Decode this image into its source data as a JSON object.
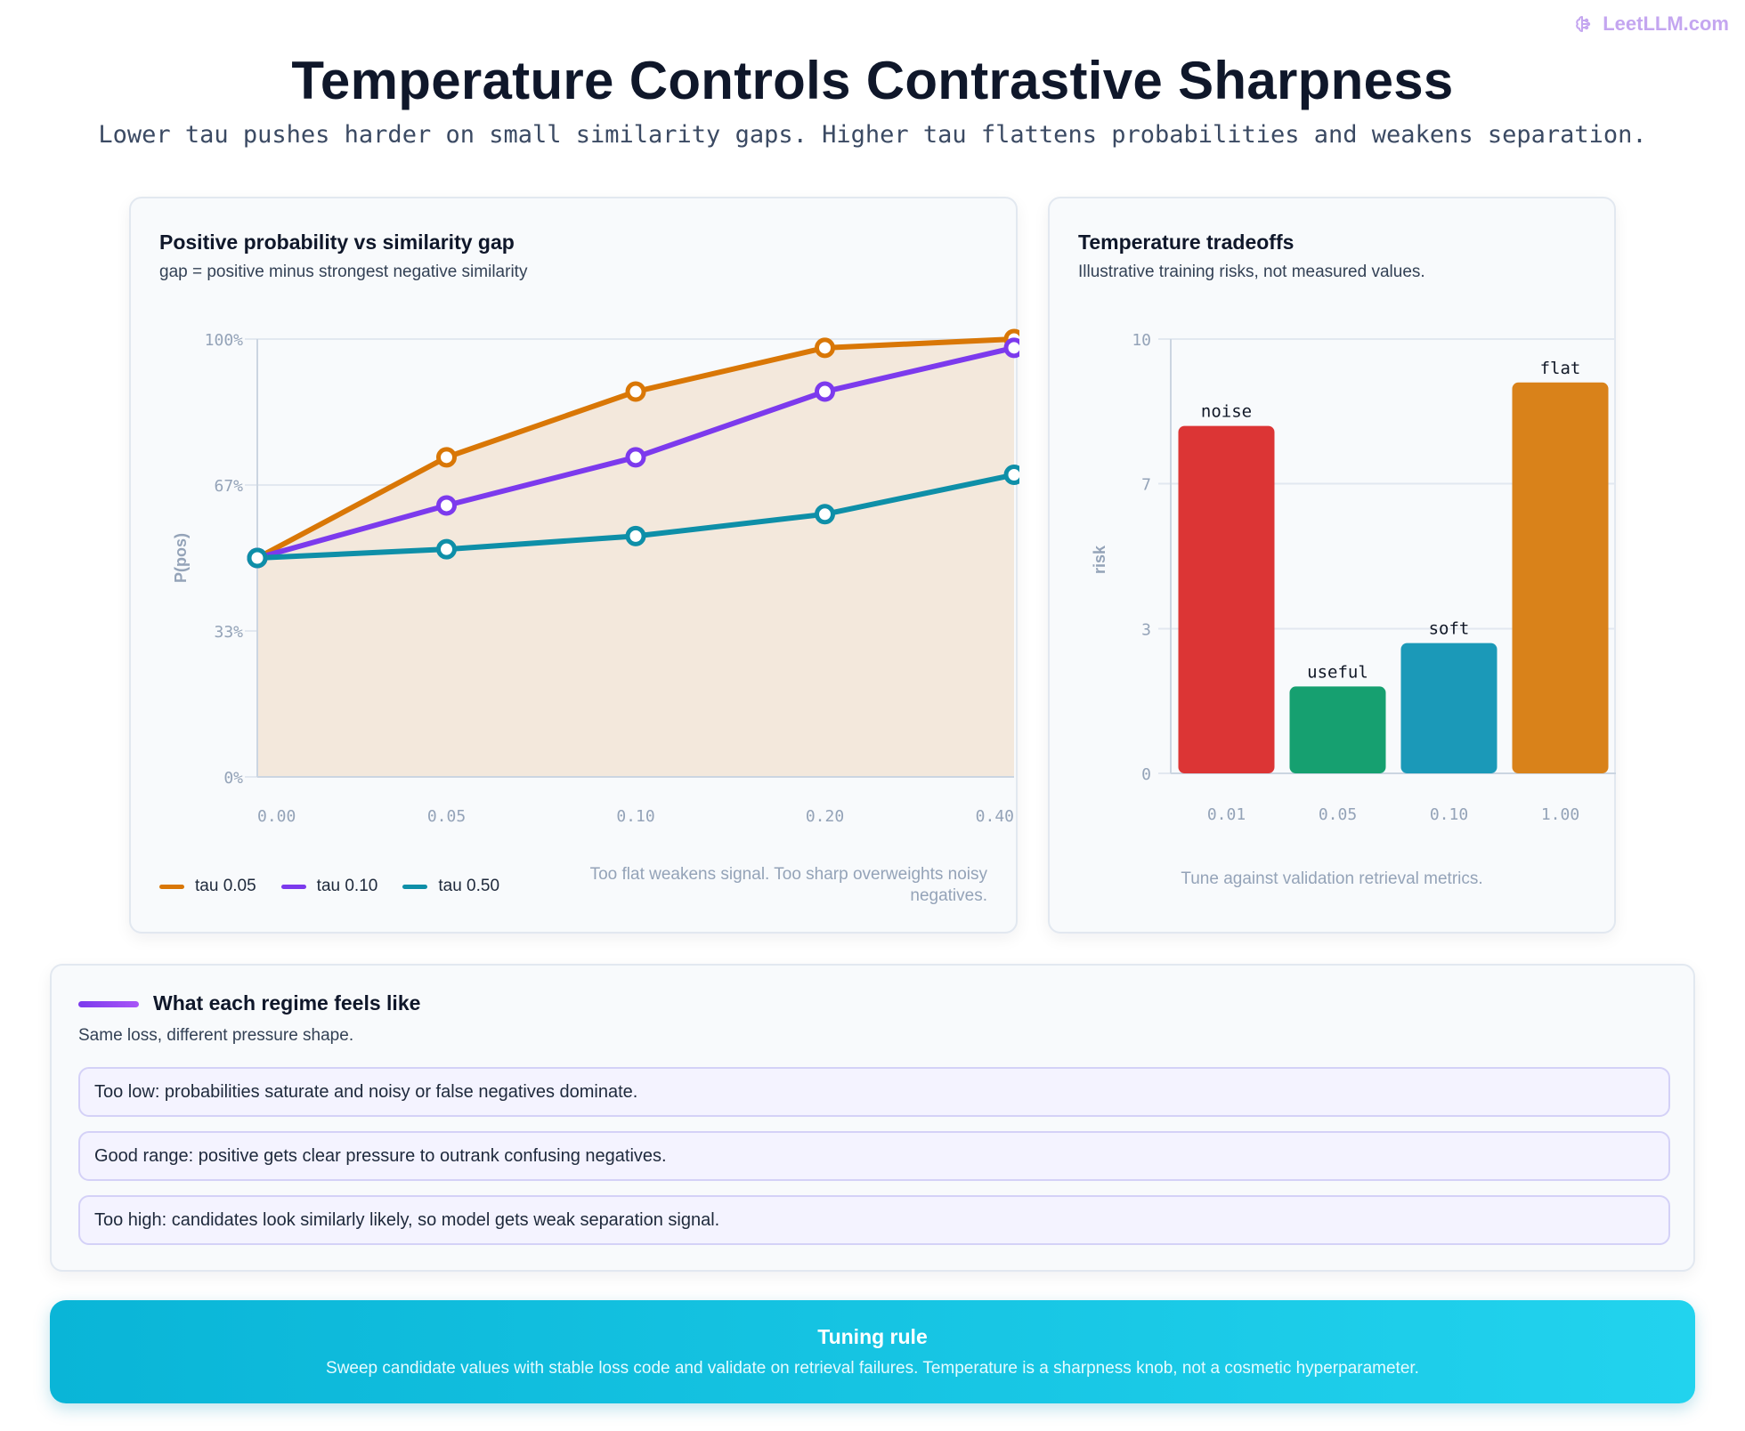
{
  "brand": {
    "name": "LeetLLM.com",
    "icon": "brain-icon",
    "color": "#c4a6f0"
  },
  "header": {
    "title": "Temperature Controls Contrastive Sharpness",
    "subtitle": "Lower tau pushes harder on small similarity gaps. Higher tau flattens probabilities and weakens separation."
  },
  "line_panel": {
    "title": "Positive probability vs similarity gap",
    "subtitle": "gap = positive minus strongest negative similarity",
    "note": "Too flat weakens signal. Too sharp overweights noisy negatives."
  },
  "bar_panel": {
    "title": "Temperature tradeoffs",
    "subtitle": "Illustrative training risks, not measured values.",
    "note": "Tune against validation retrieval metrics."
  },
  "chart_data": [
    {
      "type": "line",
      "x": [
        "0.00",
        "0.05",
        "0.10",
        "0.20",
        "0.40"
      ],
      "xlabel": "",
      "ylabel": "P(pos)",
      "ylim": [
        0,
        100
      ],
      "yticks": [
        "0%",
        "33%",
        "67%",
        "100%"
      ],
      "ytick_values": [
        0,
        33.33,
        66.67,
        100
      ],
      "grid": true,
      "legend_position": "bottom-left",
      "series": [
        {
          "name": "tau 0.05",
          "color": "#d97706",
          "values": [
            50,
            73,
            88,
            98,
            100
          ],
          "filled": true,
          "fill": "#f3e8dc"
        },
        {
          "name": "tau 0.10",
          "color": "#7c3aed",
          "values": [
            50,
            62,
            73,
            88,
            98
          ]
        },
        {
          "name": "tau 0.50",
          "color": "#0e8fa8",
          "values": [
            50,
            52,
            55,
            60,
            69
          ]
        }
      ]
    },
    {
      "type": "bar",
      "categories": [
        "0.01",
        "0.05",
        "0.10",
        "1.00"
      ],
      "values": [
        8,
        2,
        3,
        9
      ],
      "labels": [
        "noise",
        "useful",
        "soft",
        "flat"
      ],
      "colors": [
        "#dc3535",
        "#16a070",
        "#1b99b8",
        "#d9821a"
      ],
      "ylabel": "risk",
      "ylim": [
        0,
        10
      ],
      "yticks": [
        "0",
        "3",
        "7",
        "10"
      ],
      "ytick_values": [
        0,
        3.33,
        6.67,
        10
      ],
      "grid": true
    }
  ],
  "regimes": {
    "title": "What each regime feels like",
    "subtitle": "Same loss, different pressure shape.",
    "items": [
      "Too low: probabilities saturate and noisy or false negatives dominate.",
      "Good range: positive gets clear pressure to outrank confusing negatives.",
      "Too high: candidates look similarly likely, so model gets weak separation signal."
    ]
  },
  "rule": {
    "title": "Tuning rule",
    "text": "Sweep candidate values with stable loss code and validate on retrieval failures. Temperature is a sharpness knob, not a cosmetic hyperparameter."
  }
}
